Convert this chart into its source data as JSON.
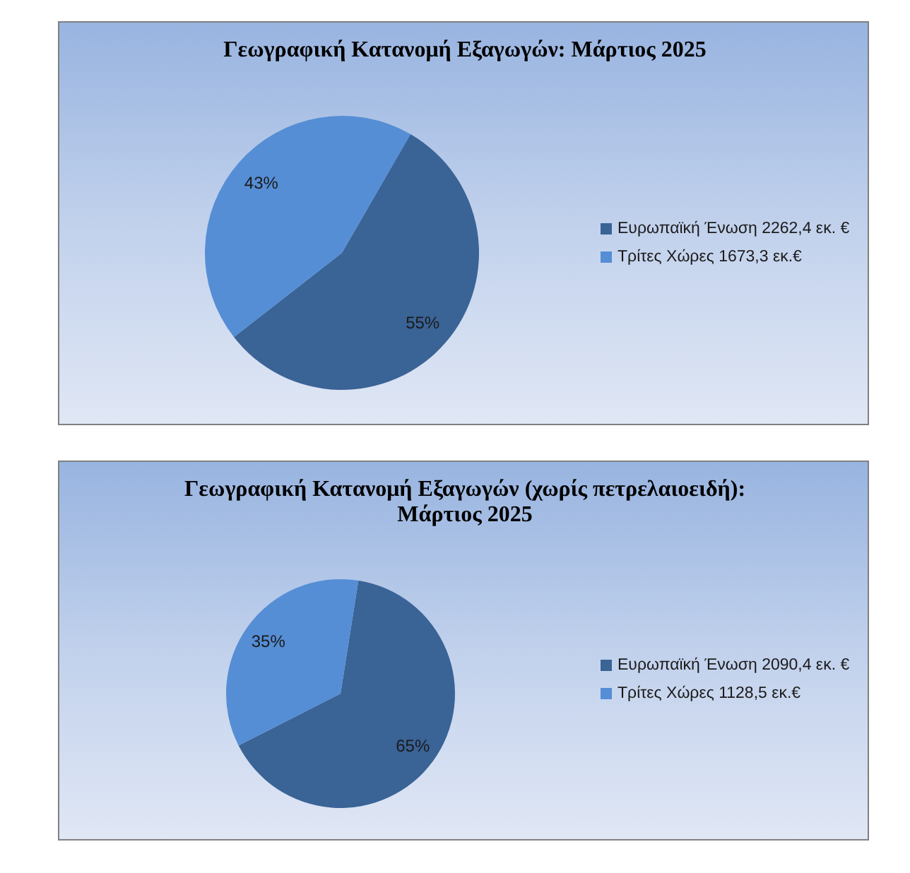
{
  "chart_data": [
    {
      "type": "pie",
      "title": "Γεωγραφική Κατανομή Εξαγωγών: Μάρτιος 2025",
      "categories": [
        "Ευρωπαϊκή Ένωση 2262,4 εκ. €",
        "Τρίτες Χώρες 1673,3 εκ.€"
      ],
      "values": [
        55,
        43
      ],
      "colors": [
        "#3a6396",
        "#558ed5"
      ],
      "value_labels": [
        "55%",
        "43%"
      ],
      "legend": "right"
    },
    {
      "type": "pie",
      "title": "Γεωγραφική Κατανομή Εξαγωγών (χωρίς πετρελαιοειδή): Μάρτιος 2025",
      "categories": [
        "Ευρωπαϊκή Ένωση 2090,4 εκ. €",
        "Τρίτες Χώρες 1128,5 εκ.€"
      ],
      "values": [
        65,
        35
      ],
      "colors": [
        "#3a6396",
        "#558ed5"
      ],
      "value_labels": [
        "65%",
        "35%"
      ],
      "legend": "right"
    }
  ]
}
